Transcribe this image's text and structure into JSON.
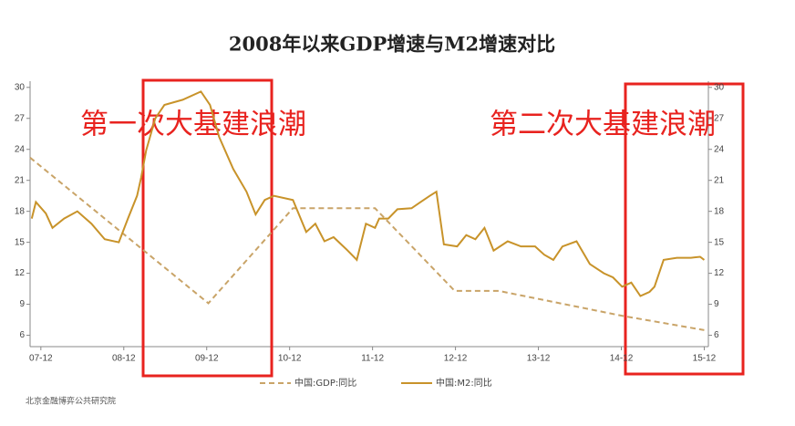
{
  "chart_data": {
    "type": "line",
    "title": "2008年以来GDP增速与M2增速对比",
    "annotations": [
      "第一次大基建浪潮",
      "第二次大基建浪潮"
    ],
    "source": "北京金融博弈公共研究院",
    "xlim": [
      -0.13,
      8.05
    ],
    "xticks": [
      {
        "value": 0,
        "label": "07-12"
      },
      {
        "value": 1,
        "label": "08-12"
      },
      {
        "value": 2,
        "label": "09-12"
      },
      {
        "value": 3,
        "label": "10-12"
      },
      {
        "value": 4,
        "label": "11-12"
      },
      {
        "value": 5,
        "label": "12-12"
      },
      {
        "value": 6,
        "label": "13-12"
      },
      {
        "value": 7,
        "label": "14-12"
      },
      {
        "value": 8,
        "label": "15-12"
      }
    ],
    "ylim": [
      4.9,
      30.6
    ],
    "yticks": [
      6,
      9,
      12,
      15,
      18,
      21,
      24,
      27,
      30
    ],
    "y2lim": [
      4.9,
      30.6
    ],
    "y2ticks": [
      6,
      9,
      12,
      15,
      18,
      21,
      24,
      27,
      30
    ],
    "series": [
      {
        "name": "中国:GDP:同比",
        "color": "#c9a468",
        "dashed": true,
        "x": [
          -0.13,
          2.02,
          3.04,
          4.03,
          4.99,
          5.52,
          7.0,
          8.0
        ],
        "values": [
          23.2,
          9.1,
          18.3,
          18.3,
          10.3,
          10.3,
          7.9,
          6.5
        ]
      },
      {
        "name": "中国:M2:同比",
        "color": "#c8932a",
        "dashed": false,
        "axis": "y2",
        "x": [
          -0.11,
          -0.06,
          0.06,
          0.14,
          0.28,
          0.44,
          0.61,
          0.77,
          0.94,
          1.05,
          1.16,
          1.21,
          1.27,
          1.38,
          1.49,
          1.71,
          1.93,
          2.04,
          2.15,
          2.32,
          2.48,
          2.59,
          2.7,
          2.81,
          3.04,
          3.2,
          3.31,
          3.42,
          3.53,
          3.7,
          3.81,
          3.92,
          4.03,
          4.08,
          4.19,
          4.3,
          4.47,
          4.58,
          4.69,
          4.77,
          4.86,
          5.02,
          5.13,
          5.24,
          5.35,
          5.46,
          5.63,
          5.79,
          5.96,
          6.07,
          6.18,
          6.29,
          6.46,
          6.62,
          6.79,
          6.9,
          7.01,
          7.12,
          7.23,
          7.34,
          7.4,
          7.51,
          7.67,
          7.84,
          7.95,
          8.0
        ],
        "values": [
          17.3,
          18.9,
          17.8,
          16.4,
          17.3,
          18.0,
          16.8,
          15.3,
          15.0,
          17.3,
          19.5,
          21.3,
          23.9,
          27.0,
          28.3,
          28.8,
          29.6,
          28.3,
          25.2,
          22.1,
          19.9,
          17.7,
          19.1,
          19.5,
          19.1,
          16.0,
          16.8,
          15.1,
          15.5,
          14.2,
          13.3,
          16.8,
          16.4,
          17.3,
          17.3,
          18.2,
          18.3,
          18.9,
          19.5,
          19.9,
          14.8,
          14.6,
          15.7,
          15.3,
          16.4,
          14.2,
          15.1,
          14.6,
          14.6,
          13.8,
          13.3,
          14.6,
          15.1,
          12.9,
          12.0,
          11.6,
          10.7,
          11.1,
          9.8,
          10.2,
          10.7,
          13.3,
          13.5,
          13.5,
          13.6,
          13.3
        ]
      }
    ]
  }
}
